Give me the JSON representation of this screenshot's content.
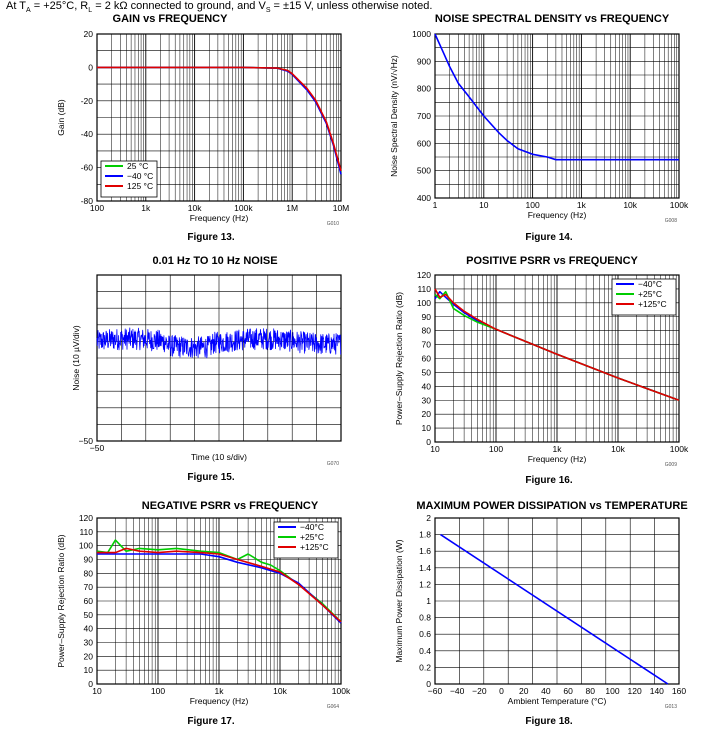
{
  "header": {
    "prefix": "At T",
    "sub_a": "A",
    "mid1": " = +25°C, R",
    "sub_l": "L",
    "mid2": " = 2 kΩ connected to ground, and V",
    "sub_s": "S",
    "suffix": " = ±15 V, unless otherwise noted."
  },
  "colors": {
    "blue": "#0000ff",
    "green": "#00cc00",
    "red": "#e00000",
    "grid": "#000000"
  },
  "chart_data": [
    {
      "id": "gain",
      "type": "line",
      "title": "GAIN vs FREQUENCY",
      "xlabel": "Frequency (Hz)",
      "ylabel": "Gain (dB)",
      "xscale": "log",
      "xlim": [
        100,
        10000000
      ],
      "ylim": [
        -80,
        20
      ],
      "xticks": [
        {
          "v": 100,
          "l": "100"
        },
        {
          "v": 1000,
          "l": "1k"
        },
        {
          "v": 10000,
          "l": "10k"
        },
        {
          "v": 100000,
          "l": "100k"
        },
        {
          "v": 1000000,
          "l": "1M"
        },
        {
          "v": 10000000,
          "l": "10M"
        }
      ],
      "yticks": [
        {
          "v": 20,
          "l": "20"
        },
        {
          "v": 0,
          "l": "0"
        },
        {
          "v": -20,
          "l": "-20"
        },
        {
          "v": -40,
          "l": "-40"
        },
        {
          "v": -60,
          "l": "-60"
        },
        {
          "v": -80,
          "l": "-80"
        }
      ],
      "legend": {
        "position": "bottom-left",
        "entries": [
          {
            "name": "25 °C",
            "color": "green"
          },
          {
            "name": "−40 °C",
            "color": "blue"
          },
          {
            "name": "125 °C",
            "color": "red"
          }
        ]
      },
      "series": [
        {
          "name": "25 °C",
          "color": "green",
          "x": [
            100,
            100000,
            500000,
            800000,
            1000000,
            2000000,
            3000000,
            5000000,
            7000000,
            10000000
          ],
          "y": [
            0,
            0,
            -0.5,
            -2,
            -4,
            -13,
            -20,
            -33,
            -46,
            -63
          ]
        },
        {
          "name": "−40 °C",
          "color": "blue",
          "x": [
            100,
            100000,
            500000,
            800000,
            1000000,
            2000000,
            3000000,
            5000000,
            7000000,
            10000000
          ],
          "y": [
            0,
            0,
            -0.5,
            -2.2,
            -4.2,
            -13.5,
            -20.5,
            -33.5,
            -46.5,
            -64
          ]
        },
        {
          "name": "125 °C",
          "color": "red",
          "x": [
            100,
            100000,
            500000,
            800000,
            1000000,
            2000000,
            3000000,
            5000000,
            7000000,
            10000000
          ],
          "y": [
            0,
            0,
            -0.4,
            -1.8,
            -3.8,
            -12.5,
            -19.5,
            -32.5,
            -45.5,
            -62
          ]
        }
      ],
      "code": "G010",
      "caption": "Figure 13."
    },
    {
      "id": "noise",
      "type": "line",
      "title": "NOISE SPECTRAL DENSITY vs FREQUENCY",
      "xlabel": "Frequency (Hz)",
      "ylabel": "Noise Spectral Density (nV/√Hz)",
      "xscale": "log",
      "xlim": [
        1,
        100000
      ],
      "ylim": [
        400,
        1000
      ],
      "xticks": [
        {
          "v": 1,
          "l": "1"
        },
        {
          "v": 10,
          "l": "10"
        },
        {
          "v": 100,
          "l": "100"
        },
        {
          "v": 1000,
          "l": "1k"
        },
        {
          "v": 10000,
          "l": "10k"
        },
        {
          "v": 100000,
          "l": "100k"
        }
      ],
      "yticks": [
        {
          "v": 1000,
          "l": "1000"
        },
        {
          "v": 900,
          "l": "900"
        },
        {
          "v": 800,
          "l": "800"
        },
        {
          "v": 700,
          "l": "700"
        },
        {
          "v": 600,
          "l": "600"
        },
        {
          "v": 500,
          "l": "500"
        },
        {
          "v": 400,
          "l": "400"
        }
      ],
      "series": [
        {
          "name": "noise",
          "color": "blue",
          "x": [
            1,
            1.5,
            2,
            3,
            5,
            10,
            20,
            30,
            50,
            100,
            200,
            300,
            1000,
            100000
          ],
          "y": [
            1000,
            930,
            880,
            820,
            770,
            700,
            640,
            610,
            580,
            560,
            550,
            540,
            540,
            540
          ]
        }
      ],
      "code": "G008",
      "caption": "Figure 14."
    },
    {
      "id": "lfnoise",
      "type": "line",
      "title": "0.01 Hz TO 10 Hz NOISE",
      "xlabel": "Time (10 s/div)",
      "ylabel": "Noise (10 µV/div)",
      "xscale": "linear",
      "xlim": [
        0,
        10
      ],
      "ylim": [
        -50,
        50
      ],
      "xticks": [
        {
          "v": 0,
          "l": "−50"
        }
      ],
      "yticks": [
        {
          "v": -50,
          "l": "−50"
        }
      ],
      "series": [
        {
          "name": "noise",
          "color": "blue",
          "noise": {
            "center": 1,
            "amplitude": 3,
            "points": 700
          }
        }
      ],
      "code": "G070",
      "caption": "Figure 15."
    },
    {
      "id": "ppsrr",
      "type": "line",
      "title": "POSITIVE PSRR vs FREQUENCY",
      "xlabel": "Frequency (Hz)",
      "ylabel": "Power–Supply Rejection Ratio (dB)",
      "xscale": "log",
      "xlim": [
        10,
        100000
      ],
      "ylim": [
        0,
        120
      ],
      "xticks": [
        {
          "v": 10,
          "l": "10"
        },
        {
          "v": 100,
          "l": "100"
        },
        {
          "v": 1000,
          "l": "1k"
        },
        {
          "v": 10000,
          "l": "10k"
        },
        {
          "v": 100000,
          "l": "100k"
        }
      ],
      "yticks": [
        {
          "v": 120,
          "l": "120"
        },
        {
          "v": 110,
          "l": "110"
        },
        {
          "v": 100,
          "l": "100"
        },
        {
          "v": 90,
          "l": "90"
        },
        {
          "v": 80,
          "l": "80"
        },
        {
          "v": 70,
          "l": "70"
        },
        {
          "v": 60,
          "l": "60"
        },
        {
          "v": 50,
          "l": "50"
        },
        {
          "v": 40,
          "l": "40"
        },
        {
          "v": 30,
          "l": "30"
        },
        {
          "v": 20,
          "l": "20"
        },
        {
          "v": 10,
          "l": "10"
        },
        {
          "v": 0,
          "l": "0"
        }
      ],
      "legend": {
        "position": "top-right",
        "entries": [
          {
            "name": "−40°C",
            "color": "blue"
          },
          {
            "name": "+25°C",
            "color": "green"
          },
          {
            "name": "+125°C",
            "color": "red"
          }
        ]
      },
      "series": [
        {
          "name": "−40°C",
          "color": "blue",
          "x": [
            10,
            12,
            15,
            20,
            30,
            50,
            100,
            1000,
            10000,
            100000
          ],
          "y": [
            103,
            108,
            104,
            99,
            93,
            87,
            81,
            63,
            46,
            30
          ]
        },
        {
          "name": "+25°C",
          "color": "green",
          "x": [
            10,
            12,
            15,
            20,
            30,
            50,
            100,
            1000,
            10000,
            100000
          ],
          "y": [
            106,
            103,
            108,
            96,
            91,
            86,
            81,
            63,
            46,
            30
          ]
        },
        {
          "name": "+125°C",
          "color": "red",
          "x": [
            10,
            12,
            15,
            20,
            30,
            50,
            100,
            1000,
            10000,
            100000
          ],
          "y": [
            110,
            104,
            106,
            100,
            94,
            88,
            81,
            63,
            46,
            30
          ]
        }
      ],
      "code": "G009",
      "caption": "Figure 16."
    },
    {
      "id": "npsrr",
      "type": "line",
      "title": "NEGATIVE PSRR vs FREQUENCY",
      "xlabel": "Frequency (Hz)",
      "ylabel": "Power–Supply Rejection Ratio (dB)",
      "xscale": "log",
      "xlim": [
        10,
        100000
      ],
      "ylim": [
        0,
        120
      ],
      "xticks": [
        {
          "v": 10,
          "l": "10"
        },
        {
          "v": 100,
          "l": "100"
        },
        {
          "v": 1000,
          "l": "1k"
        },
        {
          "v": 10000,
          "l": "10k"
        },
        {
          "v": 100000,
          "l": "100k"
        }
      ],
      "yticks": [
        {
          "v": 120,
          "l": "120"
        },
        {
          "v": 110,
          "l": "110"
        },
        {
          "v": 100,
          "l": "100"
        },
        {
          "v": 90,
          "l": "90"
        },
        {
          "v": 80,
          "l": "80"
        },
        {
          "v": 70,
          "l": "70"
        },
        {
          "v": 60,
          "l": "60"
        },
        {
          "v": 50,
          "l": "50"
        },
        {
          "v": 40,
          "l": "40"
        },
        {
          "v": 30,
          "l": "30"
        },
        {
          "v": 20,
          "l": "20"
        },
        {
          "v": 10,
          "l": "10"
        },
        {
          "v": 0,
          "l": "0"
        }
      ],
      "legend": {
        "position": "top-right",
        "entries": [
          {
            "name": "−40°C",
            "color": "blue"
          },
          {
            "name": "+25°C",
            "color": "green"
          },
          {
            "name": "+125°C",
            "color": "red"
          }
        ]
      },
      "series": [
        {
          "name": "+25°C",
          "color": "green",
          "x": [
            10,
            15,
            20,
            30,
            50,
            100,
            200,
            500,
            1000,
            2000,
            3000,
            5000,
            7000,
            10000,
            20000,
            50000,
            100000
          ],
          "y": [
            96,
            95,
            104,
            96,
            98,
            97,
            98,
            96,
            95,
            90,
            94,
            88,
            86,
            82,
            72,
            58,
            45
          ]
        },
        {
          "name": "−40°C",
          "color": "blue",
          "x": [
            10,
            20,
            50,
            100,
            200,
            500,
            1000,
            2000,
            5000,
            10000,
            20000,
            50000,
            100000
          ],
          "y": [
            94,
            94,
            94,
            94,
            94,
            94,
            92,
            88,
            84,
            80,
            73,
            57,
            44
          ]
        },
        {
          "name": "+125°C",
          "color": "red",
          "x": [
            10,
            20,
            30,
            50,
            100,
            200,
            500,
            1000,
            2000,
            5000,
            10000,
            20000,
            50000,
            100000
          ],
          "y": [
            95,
            95,
            98,
            96,
            95,
            96,
            95,
            94,
            90,
            85,
            81,
            72,
            57,
            45
          ]
        }
      ],
      "code": "G064",
      "caption": "Figure 17."
    },
    {
      "id": "pdiss",
      "type": "line",
      "title": "MAXIMUM POWER DISSIPATION vs TEMPERATURE",
      "xlabel": "Ambient Temperature (°C)",
      "ylabel": "Maximum Power Dissipation (W)",
      "xscale": "linear",
      "xlim": [
        -60,
        160
      ],
      "ylim": [
        0,
        2
      ],
      "xticks": [
        {
          "v": -60,
          "l": "−60"
        },
        {
          "v": -40,
          "l": "−40"
        },
        {
          "v": -20,
          "l": "−20"
        },
        {
          "v": 0,
          "l": "0"
        },
        {
          "v": 20,
          "l": "20"
        },
        {
          "v": 40,
          "l": "40"
        },
        {
          "v": 60,
          "l": "60"
        },
        {
          "v": 80,
          "l": "80"
        },
        {
          "v": 100,
          "l": "100"
        },
        {
          "v": 120,
          "l": "120"
        },
        {
          "v": 140,
          "l": "140"
        },
        {
          "v": 160,
          "l": "160"
        }
      ],
      "yticks": [
        {
          "v": 2,
          "l": "2"
        },
        {
          "v": 1.8,
          "l": "1.8"
        },
        {
          "v": 1.6,
          "l": "1.6"
        },
        {
          "v": 1.4,
          "l": "1.4"
        },
        {
          "v": 1.2,
          "l": "1.2"
        },
        {
          "v": 1,
          "l": "1"
        },
        {
          "v": 0.8,
          "l": "0.8"
        },
        {
          "v": 0.6,
          "l": "0.6"
        },
        {
          "v": 0.4,
          "l": "0.4"
        },
        {
          "v": 0.2,
          "l": "0.2"
        },
        {
          "v": 0,
          "l": "0"
        }
      ],
      "series": [
        {
          "name": "pdiss",
          "color": "blue",
          "x": [
            -55,
            150
          ],
          "y": [
            1.8,
            0
          ]
        }
      ],
      "code": "G013",
      "caption": "Figure 18."
    }
  ]
}
